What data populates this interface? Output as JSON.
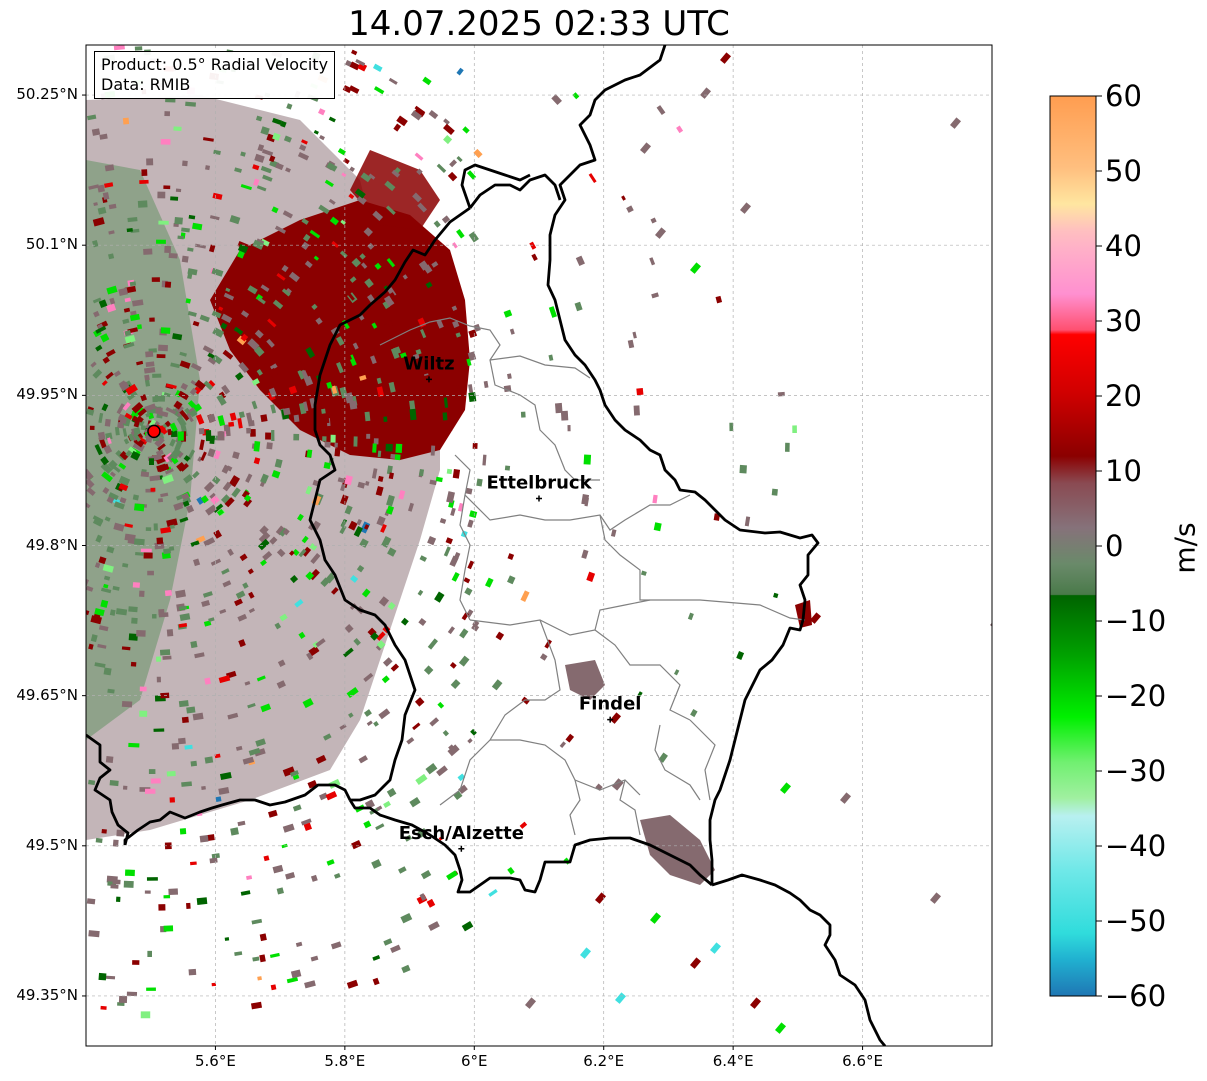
{
  "title": "14.07.2025 02:33 UTC",
  "info": {
    "product": "Product: 0.5° Radial Velocity",
    "source": "Data: RMIB"
  },
  "axes": {
    "lat_ticks": [
      "50.25°N",
      "50.1°N",
      "49.95°N",
      "49.8°N",
      "49.65°N",
      "49.5°N",
      "49.35°N"
    ],
    "lon_ticks": [
      "5.6°E",
      "5.8°E",
      "6°E",
      "6.2°E",
      "6.4°E",
      "6.6°E"
    ],
    "lat_values": [
      50.25,
      50.1,
      49.95,
      49.8,
      49.65,
      49.5,
      49.35
    ],
    "lon_values": [
      5.6,
      5.8,
      6.0,
      6.2,
      6.4,
      6.6
    ],
    "lon_range": [
      5.4,
      6.8
    ],
    "lat_range": [
      49.3,
      50.3
    ],
    "grid": true
  },
  "cities": [
    {
      "name": "Wiltz",
      "lon": 5.93,
      "lat": 49.966
    },
    {
      "name": "Ettelbruck",
      "lon": 6.1,
      "lat": 49.847
    },
    {
      "name": "Findel",
      "lon": 6.21,
      "lat": 49.626
    },
    {
      "name": "Esch/Alzette",
      "lon": 5.98,
      "lat": 49.497
    }
  ],
  "radar_site": {
    "lon": 5.505,
    "lat": 49.914
  },
  "colorbar": {
    "label": "m/s",
    "min": -60,
    "max": 60,
    "ticks": [
      "60",
      "50",
      "40",
      "30",
      "20",
      "10",
      "0",
      "−10",
      "−20",
      "−30",
      "−40",
      "−50",
      "−60"
    ],
    "tick_values": [
      60,
      50,
      40,
      30,
      20,
      10,
      0,
      -10,
      -20,
      -30,
      -40,
      -50,
      -60
    ]
  },
  "colors": {
    "outbound_dark": "#8b0000",
    "outbound_red": "#e60000",
    "outbound_pink": "#ff80c0",
    "outbound_orange": "#ffa050",
    "zero_brown": "#856a6f",
    "zero_green": "#5e8a5e",
    "inbound_dark_green": "#006400",
    "inbound_green": "#00e000",
    "inbound_light_green": "#80f080",
    "inbound_cyan": "#40e0e0",
    "inbound_blue": "#1f77b4",
    "border_color": "#000000",
    "canton_color": "#808080"
  }
}
